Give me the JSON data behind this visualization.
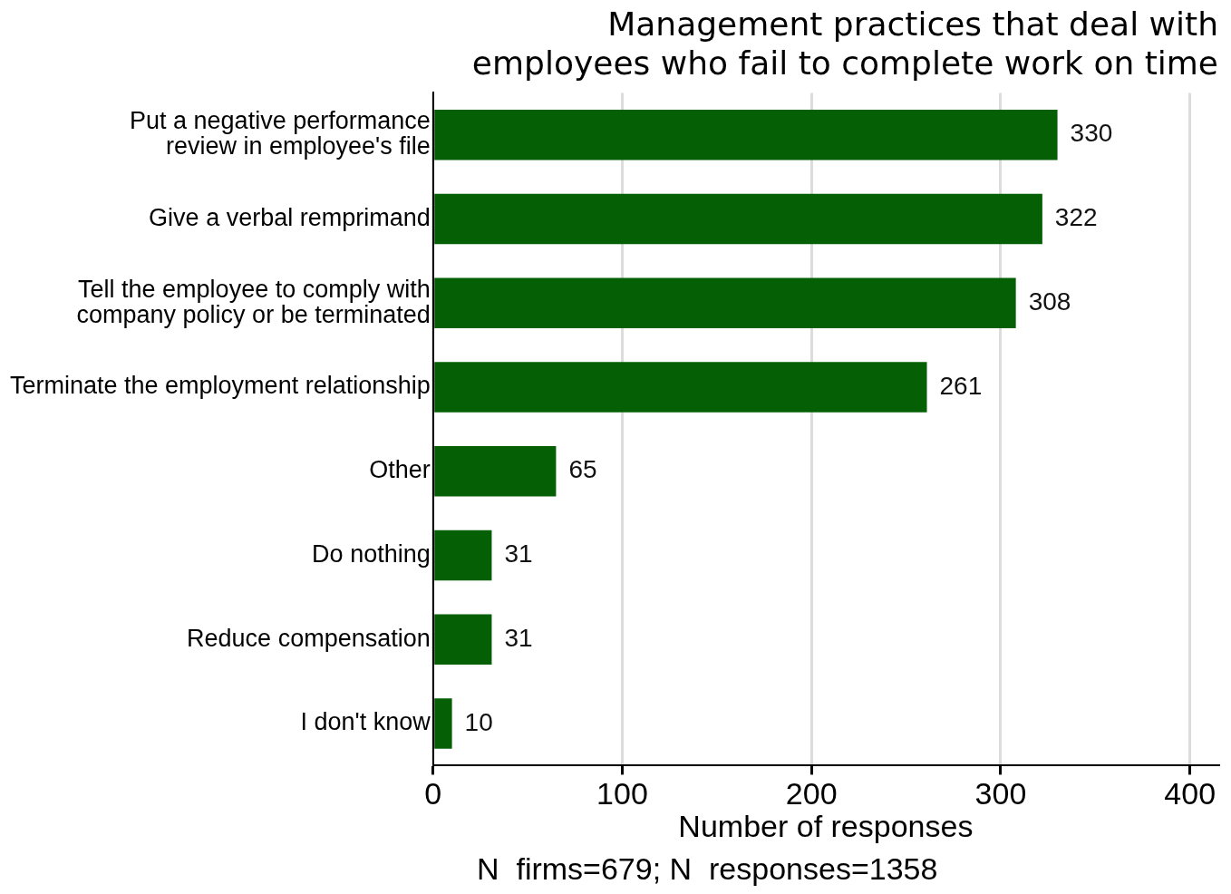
{
  "chart_data": {
    "type": "bar",
    "orientation": "horizontal",
    "title": "Management practices that deal with employees who fail to complete work on time",
    "categories": [
      "Put a negative performance review in employee's file",
      "Give a verbal remprimand",
      "Tell the employee to comply with company policy or be terminated",
      "Terminate the employment relationship",
      "Other",
      "Do nothing",
      "Reduce compensation",
      "I don't know"
    ],
    "values": [
      330,
      322,
      308,
      261,
      65,
      31,
      31,
      10
    ],
    "color": "#056005",
    "xlim": [
      0,
      415
    ],
    "xticks": [
      0,
      100,
      200,
      300,
      400
    ],
    "xlabel": "Number of responses",
    "grid": "x",
    "data_labels": true,
    "legend": false,
    "annotations": [
      "N  firms=679; N  responses=1358"
    ]
  }
}
